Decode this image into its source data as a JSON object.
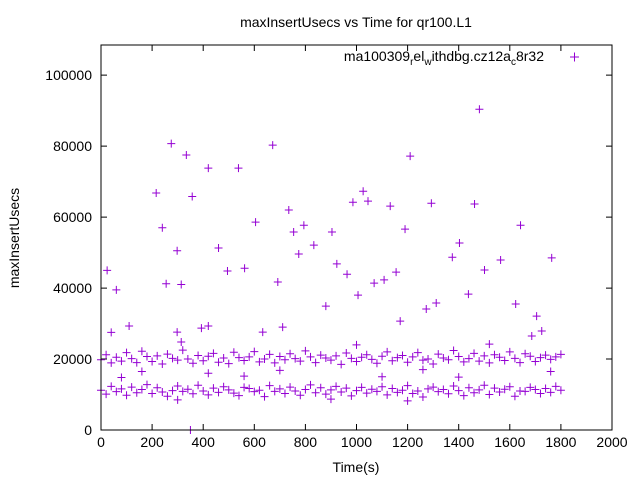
{
  "chart_data": {
    "type": "scatter",
    "title": "maxInsertUsecs vs Time for qr100.L1",
    "xlabel": "Time(s)",
    "ylabel": "maxInsertUsecs",
    "xlim": [
      0,
      2000
    ],
    "ylim": [
      0,
      108500
    ],
    "xticks": [
      0,
      200,
      400,
      600,
      800,
      1000,
      1200,
      1400,
      1600,
      1800,
      2000
    ],
    "yticks": [
      0,
      20000,
      40000,
      60000,
      80000,
      100000
    ],
    "grid": false,
    "legend": {
      "placement": "top-right",
      "label": "ma100309_rel_withdbg.cz12a_c8r32",
      "label_parts": [
        {
          "t": "ma100309",
          "sub": false
        },
        {
          "t": "r",
          "sub": true
        },
        {
          "t": "el",
          "sub": false
        },
        {
          "t": "w",
          "sub": true
        },
        {
          "t": "ithdbg.cz12a",
          "sub": false
        },
        {
          "t": "c",
          "sub": true
        },
        {
          "t": "8r32",
          "sub": false
        }
      ]
    },
    "series_color": "#9400d3",
    "series": [
      {
        "name": "ma100309_rel_withdbg.cz12a_c8r32",
        "bands": [
          {
            "x_start": 0,
            "x_step": 20,
            "y": [
              19800,
              21200,
              18900,
              20500,
              19400,
              21800,
              20100,
              19000,
              22200,
              20700,
              19300,
              20900,
              18600,
              21400,
              20200,
              19700,
              22500,
              20000,
              18800,
              21000,
              19500,
              20800,
              21600,
              19100,
              20300,
              18700,
              21900,
              20400,
              19600,
              20600,
              22100,
              19200,
              20000,
              21300,
              18900,
              20700,
              19800,
              21500,
              20100,
              19400,
              22300,
              20600,
              19000,
              21100,
              20300,
              19700,
              20900,
              18500,
              21700,
              20200,
              19300,
              20500,
              21200,
              19900,
              18800,
              20800,
              22000,
              19500,
              20400,
              21000,
              19100,
              20600,
              21800,
              19700,
              20000,
              18600,
              21400,
              20300,
              19800,
              22400,
              20700,
              19200,
              20100,
              21600,
              19400,
              20900,
              18900,
              21200,
              20500,
              19600,
              22000,
              20200,
              19000,
              21500,
              20800,
              19300,
              20400,
              21100,
              19900,
              20600,
              21300
            ]
          },
          {
            "x_start": 0,
            "x_step": 20,
            "y": [
              11200,
              10100,
              12300,
              10800,
              11600,
              9800,
              12100,
              10500,
              11400,
              12800,
              10300,
              11900,
              10700,
              9500,
              11100,
              12400,
              10900,
              11500,
              10200,
              12600,
              11000,
              9900,
              11800,
              10600,
              12200,
              11300,
              10400,
              9700,
              12000,
              11700,
              10800,
              11200,
              9400,
              12500,
              10900,
              11600,
              10300,
              12100,
              11000,
              9800,
              11400,
              12700,
              10500,
              11900,
              10100,
              11300,
              12300,
              10700,
              11800,
              9600,
              11100,
              12000,
              10400,
              11500,
              10900,
              12200,
              9900,
              11700,
              10600,
              11200,
              12500,
              10300,
              11000,
              9300,
              11600,
              12100,
              10800,
              11400,
              10200,
              12400,
              11100,
              9700,
              11900,
              10500,
              11300,
              12600,
              10000,
              11800,
              10700,
              11500,
              12200,
              9500,
              11000,
              10900,
              12000,
              11400,
              10300,
              11700,
              10600,
              12300,
              11200
            ]
          }
        ],
        "outliers": [
          [
            24,
            45000
          ],
          [
            60,
            39500
          ],
          [
            110,
            29300
          ],
          [
            216,
            66800
          ],
          [
            240,
            57000
          ],
          [
            255,
            41200
          ],
          [
            275,
            80700
          ],
          [
            298,
            27600
          ],
          [
            314,
            24800
          ],
          [
            314,
            41000
          ],
          [
            298,
            50500
          ],
          [
            334,
            77500
          ],
          [
            357,
            65800
          ],
          [
            393,
            28700
          ],
          [
            420,
            29300
          ],
          [
            420,
            73800
          ],
          [
            460,
            51300
          ],
          [
            495,
            44800
          ],
          [
            538,
            73800
          ],
          [
            562,
            45600
          ],
          [
            605,
            58600
          ],
          [
            633,
            27600
          ],
          [
            672,
            80300
          ],
          [
            692,
            41700
          ],
          [
            711,
            29000
          ],
          [
            735,
            62000
          ],
          [
            754,
            55800
          ],
          [
            774,
            49600
          ],
          [
            794,
            57700
          ],
          [
            833,
            52100
          ],
          [
            880,
            34900
          ],
          [
            904,
            55800
          ],
          [
            923,
            46800
          ],
          [
            963,
            43900
          ],
          [
            986,
            64200
          ],
          [
            1006,
            38000
          ],
          [
            1026,
            67300
          ],
          [
            1045,
            64500
          ],
          [
            1069,
            41400
          ],
          [
            1108,
            42300
          ],
          [
            1132,
            63100
          ],
          [
            1155,
            44500
          ],
          [
            1171,
            30700
          ],
          [
            1190,
            56600
          ],
          [
            1210,
            77200
          ],
          [
            1273,
            34100
          ],
          [
            1293,
            63900
          ],
          [
            1312,
            35800
          ],
          [
            1375,
            48700
          ],
          [
            1403,
            52700
          ],
          [
            1438,
            38300
          ],
          [
            1462,
            63700
          ],
          [
            1481,
            90400
          ],
          [
            1501,
            45100
          ],
          [
            1564,
            47900
          ],
          [
            1623,
            35500
          ],
          [
            1642,
            57700
          ],
          [
            1686,
            26500
          ],
          [
            1705,
            32100
          ],
          [
            1725,
            27900
          ],
          [
            1764,
            48500
          ],
          [
            350,
            0
          ],
          [
            40,
            27500
          ],
          [
            160,
            16500
          ],
          [
            420,
            16000
          ],
          [
            700,
            16800
          ],
          [
            1000,
            24000
          ],
          [
            1260,
            17000
          ],
          [
            1520,
            24200
          ],
          [
            1760,
            16500
          ],
          [
            80,
            14800
          ],
          [
            560,
            15200
          ],
          [
            1100,
            15000
          ],
          [
            1400,
            14900
          ],
          [
            1200,
            8200
          ],
          [
            900,
            8700
          ],
          [
            300,
            8500
          ]
        ]
      }
    ]
  }
}
